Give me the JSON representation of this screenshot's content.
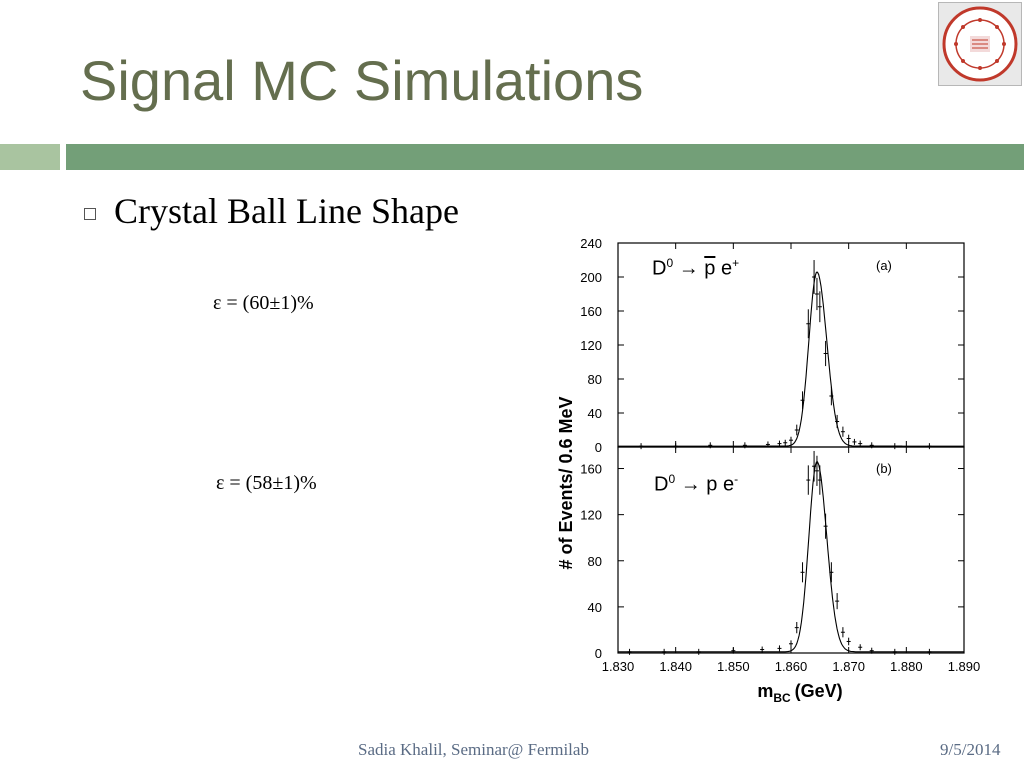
{
  "slide": {
    "title": "Signal MC Simulations",
    "bullet": "Crystal Ball Line Shape",
    "efficiency_a": "ε = (60±1)%",
    "efficiency_b": "ε = (58±1)%",
    "footer_center": "Sadia Khalil, Seminar@ Fermilab",
    "footer_date": "9/5/2014",
    "logo_text": {
      "ring": "SYRACUSE UNIVERSITY FOUNDED AD 1870",
      "center": "SUOS CULTORES SCIENTIA CORONAT"
    }
  },
  "colors": {
    "title": "#646e4e",
    "bar_light": "#a9c4a0",
    "bar_main": "#739f78",
    "logo_red": "#c0392b",
    "footer": "#5a6b84"
  },
  "chart_data": [
    {
      "type": "scatter",
      "panel_label": "(a)",
      "annotation": {
        "prefix": "D",
        "sup": "0",
        "arrow": "→",
        "particle": "p",
        "lepton": "e",
        "charge": "+"
      },
      "xlabel": "m",
      "xlabel_sub": "BC",
      "xlabel_unit": "(GeV)",
      "ylabel": "# of Events/ 0.6 MeV",
      "xlim": [
        1.83,
        1.89
      ],
      "ylim": [
        0,
        240
      ],
      "yticks": [
        "0",
        "40",
        "80",
        "120",
        "160",
        "200",
        "240"
      ],
      "xticks": [
        "1.830",
        "1.840",
        "1.850",
        "1.860",
        "1.870",
        "1.880",
        "1.890"
      ],
      "x": [
        1.834,
        1.84,
        1.846,
        1.852,
        1.856,
        1.858,
        1.859,
        1.86,
        1.861,
        1.862,
        1.863,
        1.864,
        1.8645,
        1.865,
        1.866,
        1.867,
        1.868,
        1.869,
        1.87,
        1.871,
        1.872,
        1.874,
        1.878,
        1.884
      ],
      "y": [
        1,
        1,
        2,
        2,
        3,
        4,
        5,
        8,
        20,
        55,
        145,
        200,
        180,
        165,
        110,
        60,
        30,
        18,
        10,
        6,
        4,
        2,
        1,
        1
      ],
      "fit": {
        "peak_x": 1.8645,
        "peak_y": 205,
        "sigma_left": 0.0014,
        "sigma_right": 0.0017
      }
    },
    {
      "type": "scatter",
      "panel_label": "(b)",
      "annotation": {
        "prefix": "D",
        "sup": "0",
        "arrow": "→",
        "particle": "p",
        "lepton": "e",
        "charge": "-"
      },
      "xlim": [
        1.83,
        1.89
      ],
      "ylim": [
        0,
        170
      ],
      "yticks": [
        "0",
        "40",
        "80",
        "120",
        "160"
      ],
      "x": [
        1.832,
        1.838,
        1.844,
        1.85,
        1.855,
        1.858,
        1.86,
        1.861,
        1.862,
        1.863,
        1.864,
        1.8645,
        1.865,
        1.866,
        1.867,
        1.868,
        1.869,
        1.87,
        1.872,
        1.874,
        1.878,
        1.884
      ],
      "y": [
        1,
        1,
        1,
        2,
        3,
        4,
        8,
        22,
        70,
        150,
        162,
        158,
        150,
        110,
        70,
        45,
        18,
        10,
        5,
        2,
        1,
        1
      ],
      "fit": {
        "peak_x": 1.8645,
        "peak_y": 165,
        "sigma_left": 0.0014,
        "sigma_right": 0.0017
      }
    }
  ]
}
